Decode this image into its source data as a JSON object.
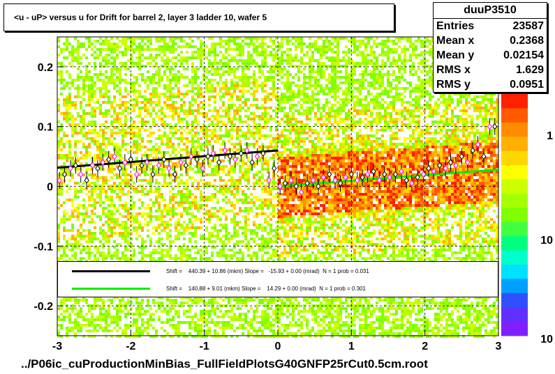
{
  "title": "<u - uP>       versus   u for Drift for barrel 2, layer 3 ladder 10, wafer 5",
  "footer": "../P06ic_cuProductionMinBias_FullFieldPlotsG40GNFP25rCut0.5cm.root",
  "stats": {
    "name": "duuP3510",
    "rows": [
      {
        "label": "Entries",
        "value": "23587"
      },
      {
        "label": "Mean x",
        "value": "0.2368"
      },
      {
        "label": "Mean y",
        "value": "0.02154"
      },
      {
        "label": "RMS x",
        "value": "1.629"
      },
      {
        "label": "RMS y",
        "value": "0.0951"
      }
    ]
  },
  "legend": [
    {
      "color": "#000000",
      "text": "Shift =    440.39 + 10.86 (mkm) Slope =   -15.93 + 0.00 (mrad)  N = 1 prob = 0.031"
    },
    {
      "color": "#00ee00",
      "text": "Shift =    140.88 + 9.01 (mkm) Slope =    14.29 + 0.00 (mrad)  N = 1 prob = 0.301"
    }
  ],
  "colors": {
    "black_fit": "#000000",
    "green_fit": "#00ee00",
    "profile_marker": "#ff00ff"
  },
  "chart_data": {
    "type": "heatmap",
    "xlim": [
      -3,
      3
    ],
    "ylim": [
      -0.25,
      0.25
    ],
    "x_ticks": [
      "-3",
      "-2",
      "-1",
      "0",
      "1",
      "2",
      "3"
    ],
    "y_ticks": [
      "-0.2",
      "-0.1",
      "0",
      "0.1",
      "0.2"
    ],
    "z_scale": "log",
    "z_ticks": [
      "1",
      "10",
      "10"
    ],
    "grid": true,
    "fits": [
      {
        "x": [
          -3,
          0
        ],
        "y": [
          0.031,
          0.06
        ]
      },
      {
        "x": [
          0,
          3
        ],
        "y": [
          0.0,
          0.028
        ]
      }
    ],
    "profile": {
      "x": [
        -2.97,
        -2.9,
        -2.82,
        -2.75,
        -2.68,
        -2.6,
        -2.52,
        -2.45,
        -2.38,
        -2.3,
        -2.22,
        -2.15,
        -2.08,
        -2.0,
        -1.92,
        -1.85,
        -1.78,
        -1.7,
        -1.62,
        -1.55,
        -1.48,
        -1.4,
        -1.32,
        -1.25,
        -1.18,
        -1.1,
        -1.02,
        -0.95,
        -0.88,
        -0.8,
        -0.72,
        -0.65,
        -0.58,
        -0.5,
        -0.42,
        -0.35,
        -0.28,
        -0.2,
        -0.12,
        -0.05,
        0.03,
        0.1,
        0.18,
        0.25,
        0.32,
        0.4,
        0.48,
        0.55,
        0.62,
        0.7,
        0.78,
        0.85,
        0.92,
        1.0,
        1.08,
        1.15,
        1.22,
        1.3,
        1.38,
        1.45,
        1.52,
        1.6,
        1.68,
        1.75,
        1.82,
        1.9,
        1.98,
        2.05,
        2.12,
        2.2,
        2.28,
        2.35,
        2.42,
        2.5,
        2.58,
        2.65,
        2.72,
        2.8,
        2.88,
        2.95
      ],
      "y": [
        0.01,
        0.02,
        0.03,
        0.035,
        0.02,
        0.01,
        0.035,
        0.03,
        0.04,
        0.045,
        0.05,
        0.03,
        0.04,
        0.045,
        0.02,
        0.035,
        0.04,
        0.02,
        0.035,
        0.045,
        0.03,
        0.02,
        0.04,
        0.035,
        0.05,
        0.045,
        0.03,
        0.05,
        0.055,
        0.04,
        0.06,
        0.05,
        0.045,
        0.055,
        0.06,
        0.04,
        0.05,
        0.055,
        0.01,
        0.03,
        0.0,
        0.005,
        0.01,
        0.0,
        -0.01,
        0.005,
        0.01,
        0.0,
        0.015,
        0.02,
        0.01,
        0.005,
        0.015,
        0.02,
        0.01,
        0.015,
        0.02,
        0.025,
        0.01,
        0.02,
        0.015,
        0.02,
        0.025,
        0.01,
        0.005,
        0.015,
        0.02,
        0.03,
        0.025,
        0.035,
        0.03,
        0.04,
        0.035,
        0.05,
        0.04,
        0.06,
        0.07,
        0.05,
        0.1,
        0.1
      ]
    }
  }
}
